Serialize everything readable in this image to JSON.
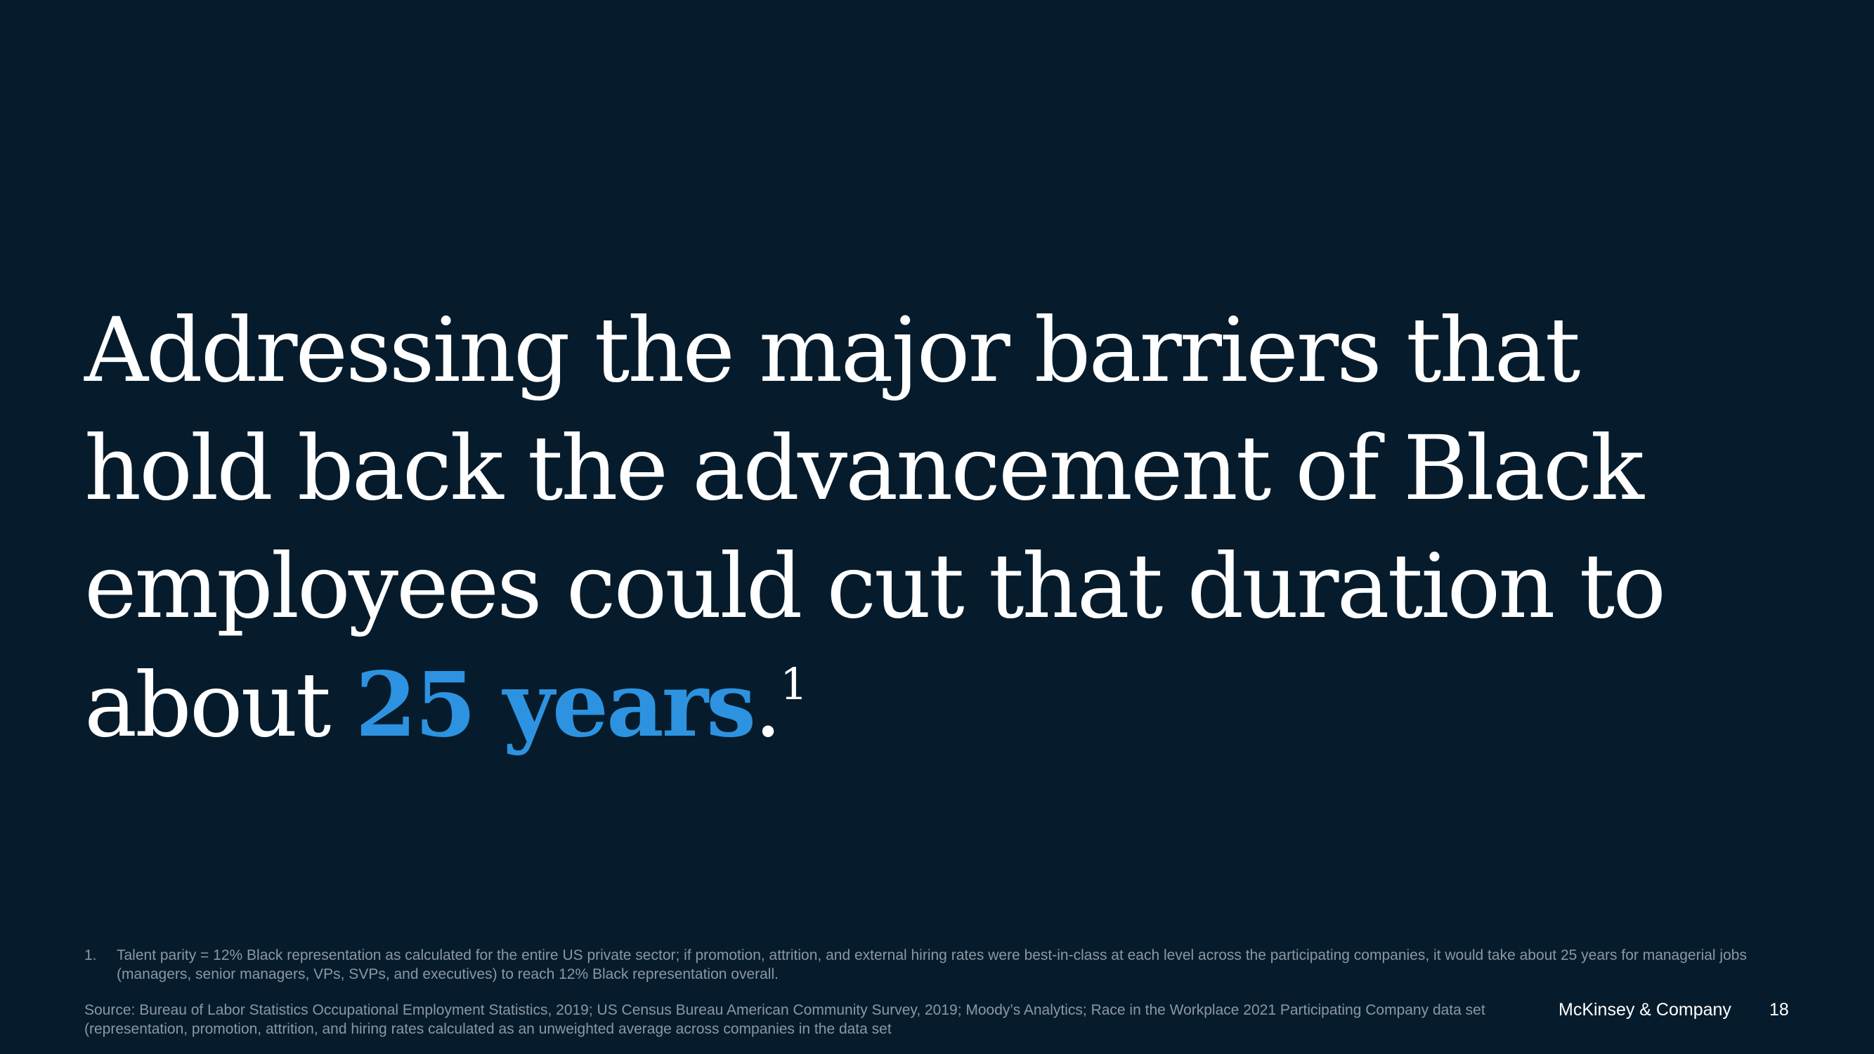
{
  "slide": {
    "background_color": "#061c2c",
    "accent_color": "#2d93e0",
    "headline": {
      "line1": "Addressing the major barriers that",
      "line2": "hold back the advancement of Black",
      "line3": "employees could cut that duration to",
      "line4_prefix": "about ",
      "line4_highlight": "25 years",
      "line4_suffix": ".",
      "footnote_marker": "1"
    },
    "footnote": {
      "number": "1.",
      "text": "Talent parity = 12% Black representation as calculated for the entire US private sector; if promotion, attrition, and external hiring rates were best-in-class at each level across the participating companies, it would take about 25 years for managerial jobs (managers, senior managers, VPs, SVPs, and executives) to reach 12% Black representation overall."
    },
    "source": "Source: Bureau of Labor Statistics Occupational Employment Statistics, 2019; US Census Bureau American Community Survey, 2019; Moody’s Analytics; Race in the Workplace 2021 Participating Company data set (representation, promotion, attrition, and hiring rates calculated as an unweighted average across companies in the data set",
    "brand": "McKinsey & Company",
    "page_number": "18"
  }
}
